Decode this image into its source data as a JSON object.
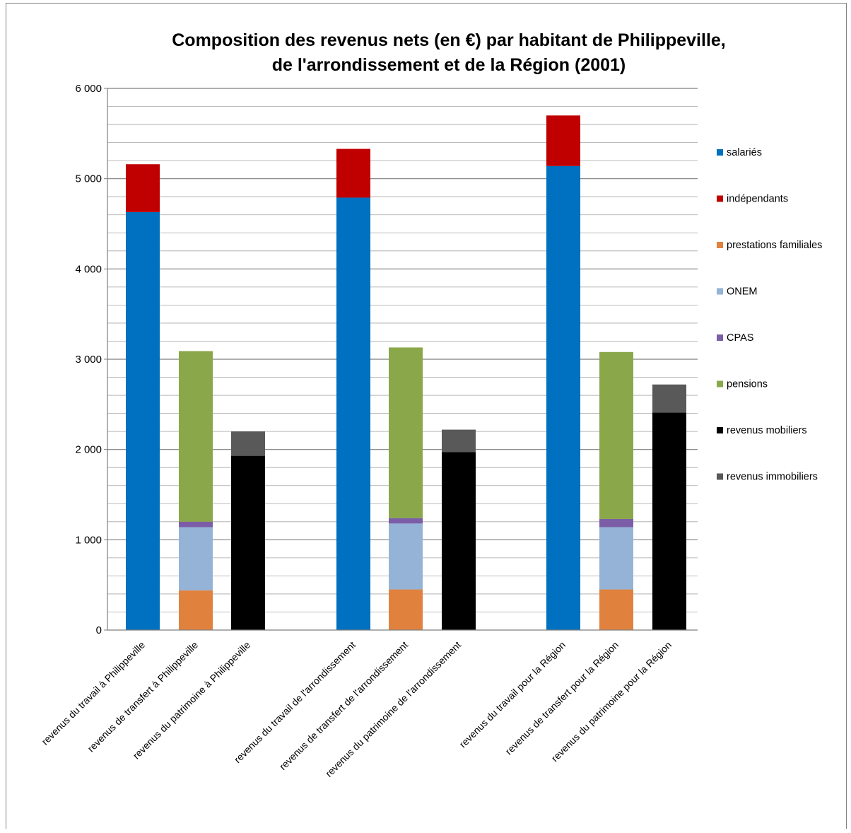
{
  "chart_data": {
    "type": "bar",
    "stacked": true,
    "title": "Composition des revenus nets (en €) par habitant de Philippeville,",
    "subtitle": "de l'arrondissement et de la Région (2001)",
    "xlabel": "",
    "ylabel": "",
    "ylim": [
      0,
      6000
    ],
    "yticks": [
      0,
      1000,
      2000,
      3000,
      4000,
      5000,
      6000
    ],
    "ytick_labels": [
      "0",
      "1 000",
      "2 000",
      "3 000",
      "4 000",
      "5 000",
      "6 000"
    ],
    "grid": true,
    "legend_position": "right",
    "categories": [
      "revenus du travail à Philippeville",
      "revenus de transfert à Philippeville",
      "revenus du patrimoine à Philippeville",
      "revenus du travail de l'arrondissement",
      "revenus de transfert de l'arrondissement",
      "revenus du patrimoine de l'arrondissement",
      "revenus du travail pour la Région",
      "revenus de transfert pour la Région",
      "revenus du patrimoine pour la Région"
    ],
    "series": [
      {
        "name": "salariés",
        "color": "#0070C0",
        "values": [
          4630,
          0,
          0,
          4790,
          0,
          0,
          5140,
          0,
          0
        ]
      },
      {
        "name": "indépendants",
        "color": "#C00000",
        "values": [
          530,
          0,
          0,
          540,
          0,
          0,
          560,
          0,
          0
        ]
      },
      {
        "name": "prestations familiales",
        "color": "#E0823E",
        "values": [
          0,
          440,
          0,
          0,
          450,
          0,
          0,
          450,
          0
        ]
      },
      {
        "name": "ONEM",
        "color": "#95B3D7",
        "values": [
          0,
          700,
          0,
          0,
          730,
          0,
          0,
          690,
          0
        ]
      },
      {
        "name": "CPAS",
        "color": "#7B5EA7",
        "values": [
          0,
          60,
          0,
          0,
          60,
          0,
          0,
          90,
          0
        ]
      },
      {
        "name": "pensions",
        "color": "#8AA84A",
        "values": [
          0,
          1890,
          0,
          0,
          1890,
          0,
          0,
          1850,
          0
        ]
      },
      {
        "name": "revenus mobiliers",
        "color": "#000000",
        "values": [
          0,
          0,
          1930,
          0,
          0,
          1970,
          0,
          0,
          2410
        ]
      },
      {
        "name": "revenus immobiliers",
        "color": "#595959",
        "values": [
          0,
          0,
          270,
          0,
          0,
          250,
          0,
          0,
          310
        ]
      }
    ]
  }
}
